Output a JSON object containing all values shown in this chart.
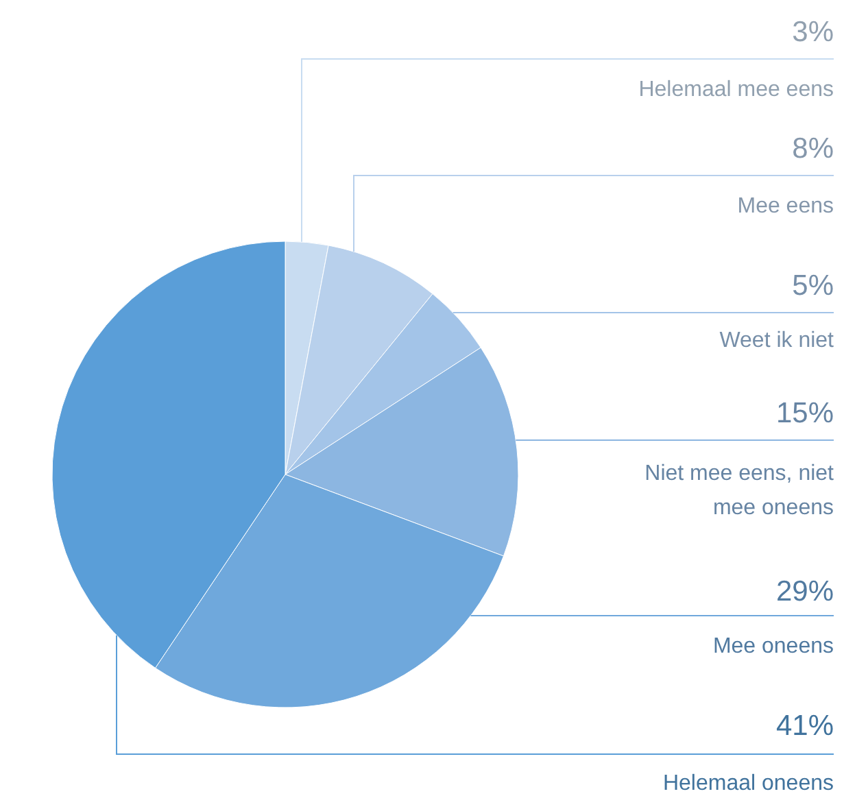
{
  "chart_data": {
    "type": "pie",
    "categories": [
      "Helemaal mee eens",
      "Mee eens",
      "Weet ik niet",
      "Niet mee eens, niet mee oneens",
      "Mee oneens",
      "Helemaal oneens"
    ],
    "values": [
      3,
      8,
      5,
      15,
      29,
      41
    ],
    "colors": [
      "#c8dcf1",
      "#b8d0ec",
      "#a3c4e8",
      "#8cb6e1",
      "#6fa8dc",
      "#5a9ed8"
    ],
    "value_labels": [
      "3%",
      "8%",
      "5%",
      "15%",
      "29%",
      "41%"
    ]
  }
}
